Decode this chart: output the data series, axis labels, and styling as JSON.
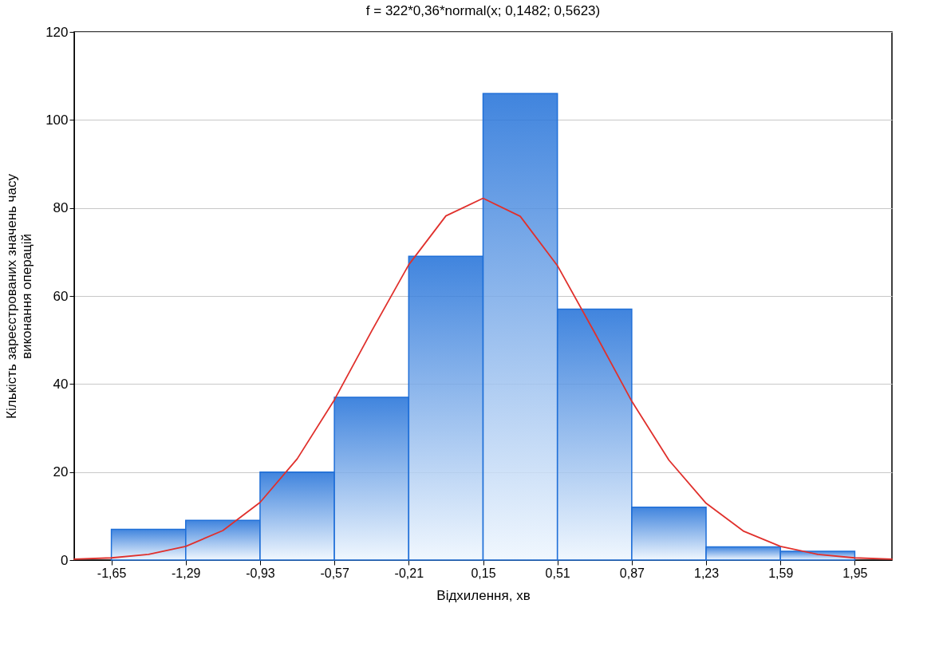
{
  "chart_data": {
    "type": "histogram",
    "title": "f = 322*0,36*normal(x; 0,1482; 0,5623)",
    "xlabel": "Відхилення, хв",
    "ylabel": "Кількість зареєстрованих значень часу виконання операцій",
    "bins": [
      -1.65,
      -1.29,
      -0.93,
      -0.57,
      -0.21,
      0.15,
      0.51,
      0.87,
      1.23,
      1.59,
      1.95
    ],
    "values": [
      7,
      9,
      20,
      37,
      69,
      106,
      57,
      12,
      3,
      2
    ],
    "color": "#1f6fd8",
    "series": [
      {
        "type": "line",
        "color": "#e0302c",
        "x": [
          -1.83,
          -1.65,
          -1.47,
          -1.29,
          -1.11,
          -0.93,
          -0.75,
          -0.57,
          -0.39,
          -0.21,
          -0.03,
          0.15,
          0.33,
          0.51,
          0.69,
          0.87,
          1.05,
          1.23,
          1.41,
          1.59,
          1.77,
          1.95,
          2.13
        ],
        "values": [
          0.2,
          0.5,
          1.3,
          3.1,
          6.7,
          13.1,
          23.0,
          36.4,
          52.0,
          67.1,
          78.2,
          82.2,
          78.1,
          66.9,
          51.7,
          36.1,
          22.7,
          12.9,
          6.6,
          3.1,
          1.3,
          0.5,
          0.2
        ]
      }
    ],
    "xlim": [
      -1.83,
      2.13
    ],
    "xticks": [
      {
        "value": -1.65,
        "label": "-1,65"
      },
      {
        "value": -1.29,
        "label": "-1,29"
      },
      {
        "value": -0.93,
        "label": "-0,93"
      },
      {
        "value": -0.57,
        "label": "-0,57"
      },
      {
        "value": -0.21,
        "label": "-0,21"
      },
      {
        "value": 0.15,
        "label": "0,15"
      },
      {
        "value": 0.51,
        "label": "0,51"
      },
      {
        "value": 0.87,
        "label": "0,87"
      },
      {
        "value": 1.23,
        "label": "1,23"
      },
      {
        "value": 1.59,
        "label": "1,59"
      },
      {
        "value": 1.95,
        "label": "1,95"
      }
    ],
    "ylim": [
      0,
      120
    ],
    "yticks": [
      0,
      20,
      40,
      60,
      80,
      100,
      120
    ],
    "grid": "y",
    "line_style": "solid",
    "marker": "none"
  }
}
